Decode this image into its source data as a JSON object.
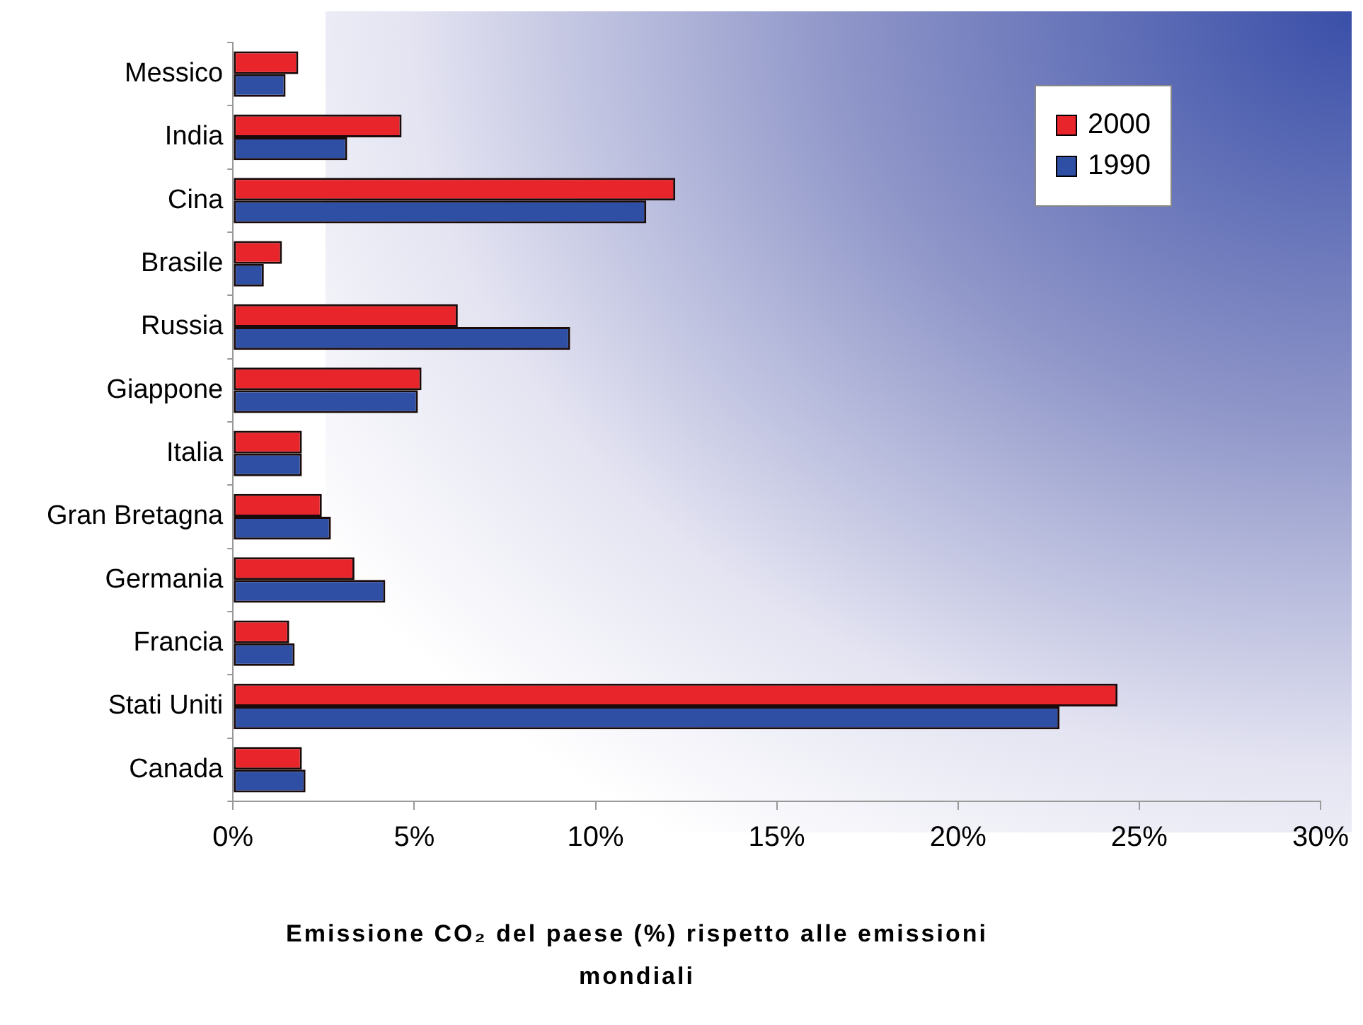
{
  "chart_data": {
    "type": "bar",
    "orientation": "horizontal",
    "xlabel": "Emissione CO₂ del paese (%) rispetto alle emissioni mondiali",
    "categories": [
      "Messico",
      "India",
      "Cina",
      "Brasile",
      "Russia",
      "Giappone",
      "Italia",
      "Gran Bretagna",
      "Germania",
      "Francia",
      "Stati Uniti",
      "Canada"
    ],
    "series": [
      {
        "name": "2000",
        "color": "#e8252b",
        "values": [
          1.8,
          4.65,
          12.2,
          1.35,
          6.2,
          5.2,
          1.9,
          2.45,
          3.35,
          1.55,
          24.4,
          1.9
        ]
      },
      {
        "name": "1990",
        "color": "#2e4fa3",
        "values": [
          1.45,
          3.15,
          11.4,
          0.85,
          9.3,
          5.1,
          1.9,
          2.7,
          4.2,
          1.7,
          22.8,
          2.0
        ]
      }
    ],
    "xlim": [
      0,
      30
    ],
    "xticks": [
      {
        "value": 0,
        "label": "0%"
      },
      {
        "value": 5,
        "label": "5%"
      },
      {
        "value": 10,
        "label": "10%"
      },
      {
        "value": 15,
        "label": "15%"
      },
      {
        "value": 20,
        "label": "20%"
      },
      {
        "value": 25,
        "label": "25%"
      },
      {
        "value": 30,
        "label": "30%"
      }
    ],
    "grid": false,
    "legend": "top right"
  }
}
